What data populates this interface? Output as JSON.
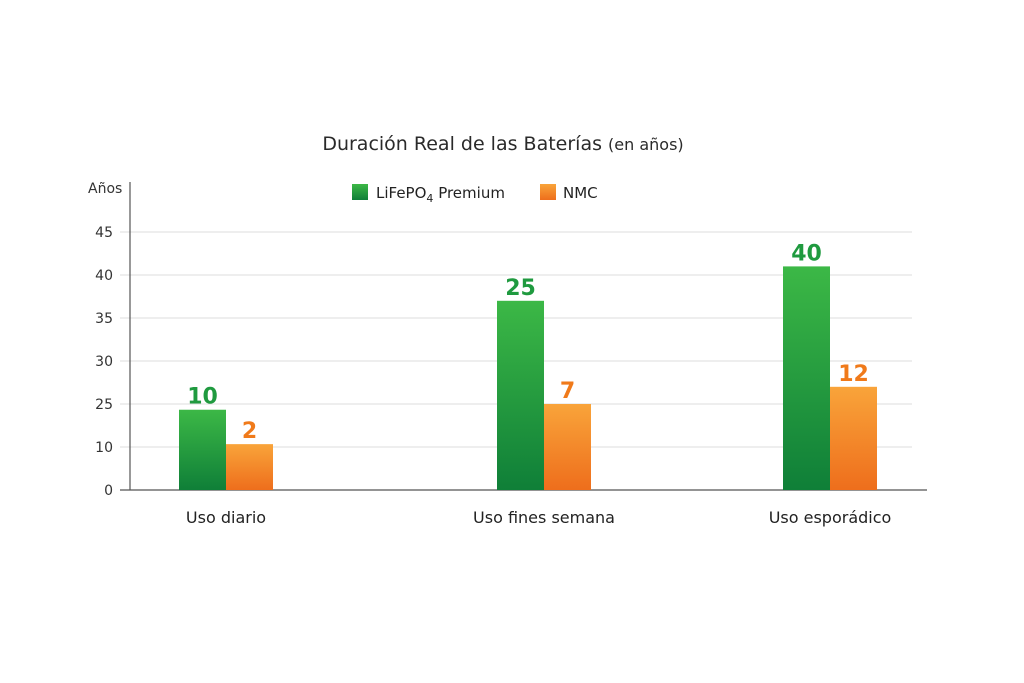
{
  "chart_data": {
    "type": "bar",
    "title": "Duración Real de las Baterías",
    "title_suffix": "(en años)",
    "ylabel": "Años",
    "y_tick_labels": [
      "0",
      "10",
      "25",
      "30",
      "35",
      "40",
      "45"
    ],
    "categories": [
      "Uso diario",
      "Uso fines semana",
      "Uso esporádico"
    ],
    "series": [
      {
        "name": "LiFePO4 Premium",
        "name_main": "LiFePO",
        "name_sub": "4",
        "name_rest": " Premium",
        "color": "#1f9a3f",
        "color_light": "#3cb846",
        "values": [
          10,
          25,
          40
        ],
        "bar_heights_axis_reading": [
          23,
          37,
          41
        ]
      },
      {
        "name": "NMC",
        "color": "#f07a1a",
        "color_light": "#f9a43a",
        "values": [
          2,
          7,
          12
        ],
        "bar_heights_axis_reading": [
          11,
          25,
          27
        ]
      }
    ],
    "grid": true,
    "legend_position": "top-center"
  }
}
